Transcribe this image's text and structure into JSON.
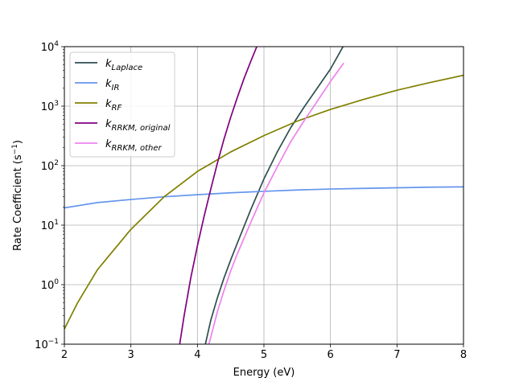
{
  "chart_data": {
    "type": "line",
    "xlabel": "Energy (eV)",
    "ylabel": "Rate Coefficient (s",
    "ylabel_sup": "−1",
    "ylabel_close": ")",
    "xlim": [
      2,
      8
    ],
    "ylim": [
      0.1,
      10000
    ],
    "yscale": "log",
    "grid": true,
    "legend_position": "upper-left",
    "x_ticks": [
      2,
      3,
      4,
      5,
      6,
      7,
      8
    ],
    "x_tick_labels": [
      "2",
      "3",
      "4",
      "5",
      "6",
      "7",
      "8"
    ],
    "y_ticks": [
      0.1,
      1,
      10,
      100,
      1000,
      10000
    ],
    "y_tick_labels": [
      {
        "base": "10",
        "exp": "−1"
      },
      {
        "base": "10",
        "exp": "0"
      },
      {
        "base": "10",
        "exp": "1"
      },
      {
        "base": "10",
        "exp": "2"
      },
      {
        "base": "10",
        "exp": "3"
      },
      {
        "base": "10",
        "exp": "4"
      }
    ],
    "series": [
      {
        "name": "k",
        "sub": "Laplace",
        "color": "#2f4f4f",
        "x": [
          4.1,
          4.2,
          4.3,
          4.4,
          4.5,
          4.6,
          4.8,
          5.0,
          5.2,
          5.4,
          5.6,
          5.8,
          6.0,
          6.2
        ],
        "y": [
          0.08,
          0.25,
          0.6,
          1.3,
          2.6,
          5.0,
          18,
          60,
          170,
          430,
          950,
          2000,
          4200,
          10500
        ]
      },
      {
        "name": "k",
        "sub": "IR",
        "color": "#6495ed",
        "x": [
          2.0,
          2.5,
          3.0,
          3.5,
          4.0,
          4.5,
          5.0,
          5.5,
          6.0,
          6.5,
          7.0,
          7.5,
          8.0
        ],
        "y": [
          19.5,
          24,
          27,
          30,
          32.5,
          35,
          37,
          39,
          40.5,
          41.5,
          42.5,
          43.5,
          44
        ]
      },
      {
        "name": "k",
        "sub": "RF",
        "color": "#808000",
        "x": [
          2.0,
          2.2,
          2.5,
          3.0,
          3.5,
          4.0,
          4.5,
          5.0,
          5.5,
          6.0,
          6.5,
          7.0,
          7.5,
          8.0
        ],
        "y": [
          0.18,
          0.5,
          1.8,
          8.5,
          30,
          80,
          170,
          320,
          560,
          880,
          1300,
          1850,
          2500,
          3300
        ]
      },
      {
        "name": "k",
        "sub": "RRKM, original",
        "color": "#800080",
        "x": [
          3.72,
          3.8,
          3.9,
          4.0,
          4.1,
          4.2,
          4.3,
          4.4,
          4.5,
          4.6,
          4.7,
          4.8,
          4.9
        ],
        "y": [
          0.08,
          0.3,
          1.3,
          4.5,
          14,
          40,
          110,
          280,
          650,
          1400,
          2900,
          5600,
          10500
        ]
      },
      {
        "name": "k",
        "sub": "RRKM, other",
        "color": "#ee82ee",
        "x": [
          4.15,
          4.2,
          4.3,
          4.4,
          4.5,
          4.6,
          4.8,
          5.0,
          5.2,
          5.4,
          5.6,
          5.8,
          6.0,
          6.2
        ],
        "y": [
          0.08,
          0.13,
          0.35,
          0.8,
          1.7,
          3.3,
          11,
          35,
          95,
          250,
          560,
          1200,
          2600,
          5300
        ]
      }
    ]
  }
}
